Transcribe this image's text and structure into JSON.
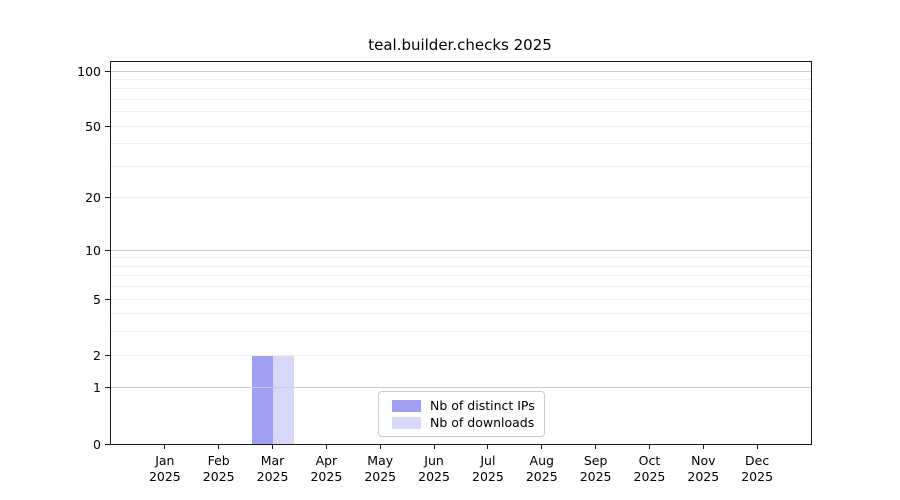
{
  "chart_data": {
    "type": "bar",
    "title": "teal.builder.checks 2025",
    "categories": [
      "Jan",
      "Feb",
      "Mar",
      "Apr",
      "May",
      "Jun",
      "Jul",
      "Aug",
      "Sep",
      "Oct",
      "Nov",
      "Dec"
    ],
    "category_year": "2025",
    "series": [
      {
        "name": "Nb of distinct IPs",
        "color": "#a0a0f0",
        "values": [
          0,
          0,
          2,
          0,
          0,
          0,
          0,
          0,
          0,
          0,
          0,
          0
        ]
      },
      {
        "name": "Nb of downloads",
        "color": "#d8d8f8",
        "values": [
          0,
          0,
          2,
          0,
          0,
          0,
          0,
          0,
          0,
          0,
          0,
          0
        ]
      }
    ],
    "xlabel": "",
    "ylabel": "",
    "y_scale": "log1p",
    "y_ticks": [
      0,
      1,
      2,
      5,
      10,
      20,
      50,
      100
    ],
    "y_max": 112,
    "major_gridlines": [
      1,
      10,
      100
    ],
    "minor_gridlines": [
      2,
      3,
      4,
      5,
      6,
      7,
      8,
      9,
      20,
      30,
      40,
      50,
      60,
      70,
      80,
      90
    ],
    "grid_major_color": "#cccccc",
    "grid_minor_color": "#efefef",
    "spine_color": "#1a1a1a",
    "legend_position": "lower center inside",
    "legend_border_color": "#cccccc"
  }
}
